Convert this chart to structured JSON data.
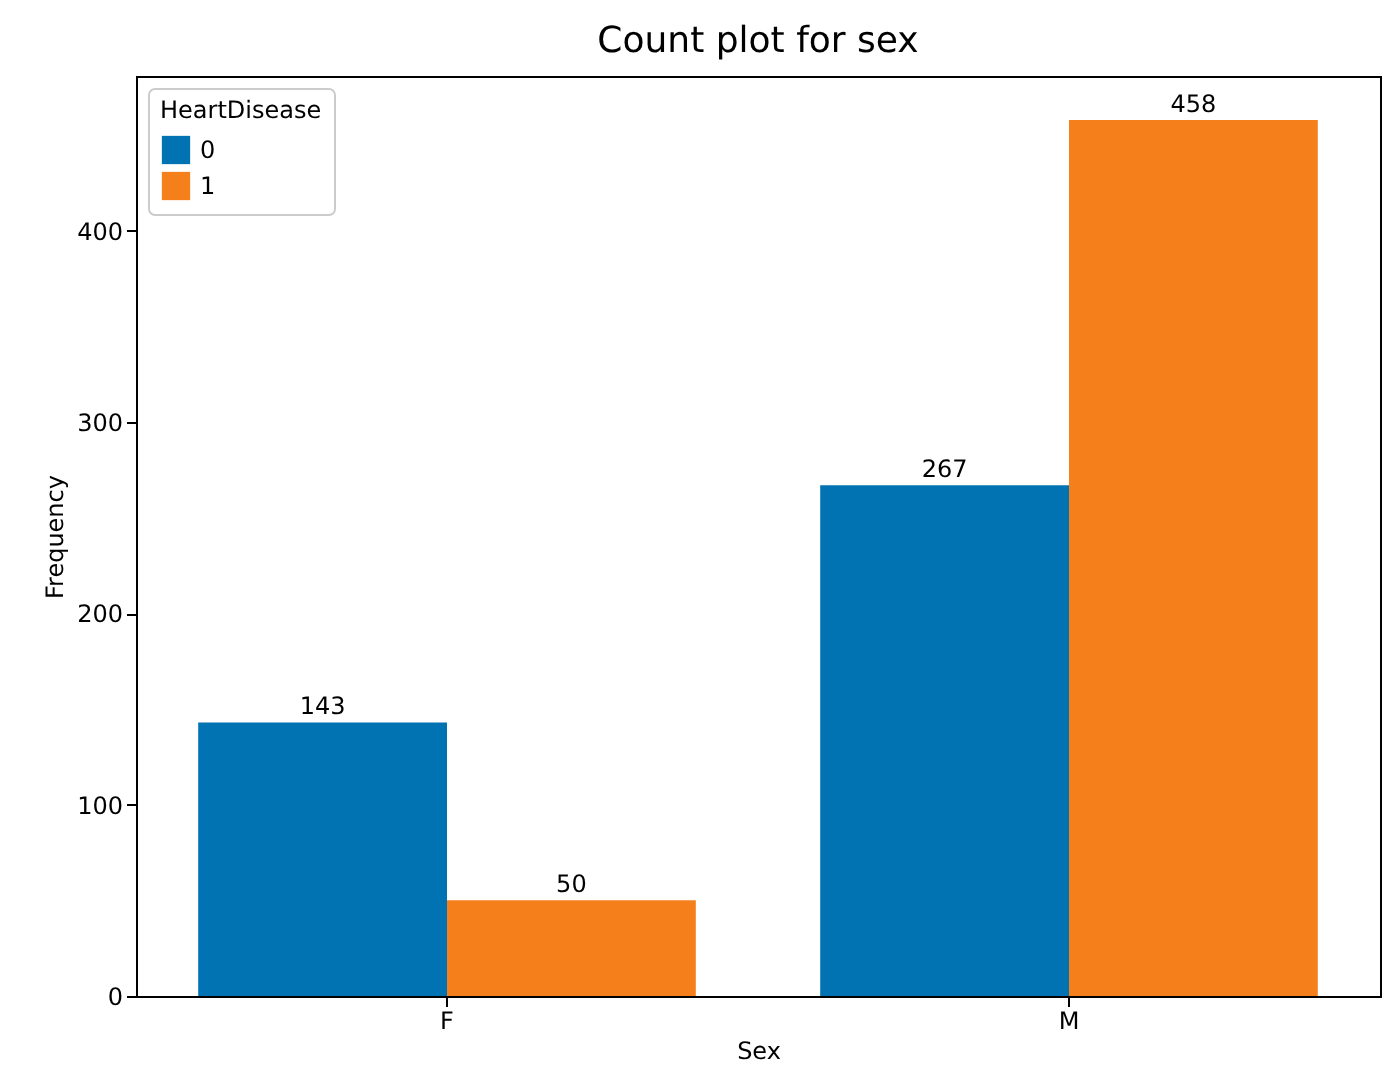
{
  "chart_data": {
    "type": "bar",
    "title": "Count plot for sex",
    "xlabel": "Sex",
    "ylabel": "Frequency",
    "legend_title": "HeartDisease",
    "legend": "top left",
    "categories": [
      "F",
      "M"
    ],
    "series": [
      {
        "name": "0",
        "color": "#0173b2",
        "values": [
          143,
          267
        ]
      },
      {
        "name": "1",
        "color": "#f47f1b",
        "values": [
          50,
          458
        ]
      }
    ],
    "ylim": [
      0,
      481
    ],
    "yticks": [
      0,
      100,
      200,
      300,
      400
    ],
    "grid": false,
    "data_labels": true
  }
}
